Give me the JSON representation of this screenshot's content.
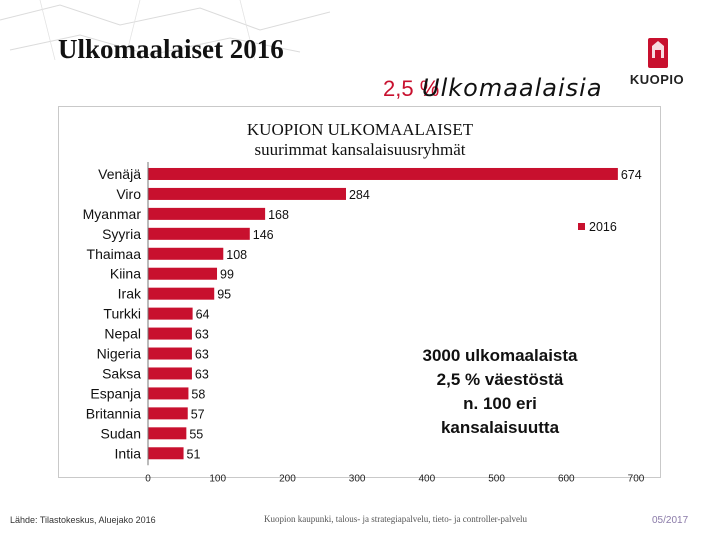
{
  "slide": {
    "title": "Ulkomaalaiset 2016",
    "headline_pct": "2,5 %",
    "headline_word": "Ulkomaalaisia",
    "logo_text": "KUOPIO",
    "callout": [
      "3000 ulkomaalaista",
      "2,5 % väestöstä",
      "n. 100  eri",
      "kansalaisuutta"
    ],
    "source": "Lähde: Tilastokeskus, Aluejako 2016",
    "footer_center": "Kuopion kaupunki, talous- ja strategiapalvelu, tieto- ja controller-palvelu",
    "date": "05/2017"
  },
  "colors": {
    "bar": "#c8102e",
    "accent_red": "#c8102e"
  },
  "chart_data": {
    "type": "bar",
    "orientation": "horizontal",
    "title": "KUOPION ULKOMAALAISET suurimmat kansalaisuusryhmät",
    "title_lines": [
      "KUOPION ULKOMAALAISET",
      "suurimmat kansalaisuusryhmät"
    ],
    "categories": [
      "Venäjä",
      "Viro",
      "Myanmar",
      "Syyria",
      "Thaimaa",
      "Kiina",
      "Irak",
      "Turkki",
      "Nepal",
      "Nigeria",
      "Saksa",
      "Espanja",
      "Britannia",
      "Sudan",
      "Intia"
    ],
    "series": [
      {
        "name": "2016",
        "values": [
          674,
          284,
          168,
          146,
          108,
          99,
          95,
          64,
          63,
          63,
          63,
          58,
          57,
          55,
          51
        ]
      }
    ],
    "xlim": [
      0,
      700
    ],
    "xticks": [
      0,
      100,
      200,
      300,
      400,
      500,
      600,
      700
    ],
    "legend": "right",
    "data_labels": true,
    "grid": false
  }
}
